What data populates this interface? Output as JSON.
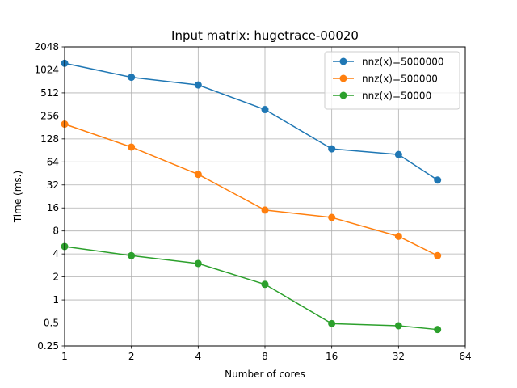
{
  "chart_data": {
    "type": "line",
    "title": "Input matrix: hugetrace-00020",
    "xlabel": "Number of cores",
    "ylabel": "Time (ms.)",
    "x_scale": "log2",
    "y_scale": "log2",
    "xlim": [
      1,
      64
    ],
    "ylim": [
      0.25,
      2048
    ],
    "x_ticks": [
      1,
      2,
      4,
      8,
      16,
      32,
      64
    ],
    "x_tick_labels": [
      "1",
      "2",
      "4",
      "8",
      "16",
      "32",
      "64"
    ],
    "y_ticks": [
      0.25,
      0.5,
      1,
      2,
      4,
      8,
      16,
      32,
      64,
      128,
      256,
      512,
      1024,
      2048
    ],
    "y_tick_labels": [
      "0.25",
      "0.5",
      "1",
      "2",
      "4",
      "8",
      "16",
      "32",
      "64",
      "128",
      "256",
      "512",
      "1024",
      "2048"
    ],
    "grid": true,
    "legend_position": "top-right",
    "x": [
      1,
      2,
      4,
      8,
      16,
      32,
      48
    ],
    "series": [
      {
        "name": "nnz(x)=5000000",
        "color": "#1f77b4",
        "values": [
          1250,
          820,
          650,
          310,
          95,
          80,
          37
        ]
      },
      {
        "name": "nnz(x)=500000",
        "color": "#ff7f0e",
        "values": [
          200,
          100,
          44,
          15,
          12,
          6.8,
          3.8
        ]
      },
      {
        "name": "nnz(x)=50000",
        "color": "#2ca02c",
        "values": [
          5.0,
          3.8,
          3.0,
          1.6,
          0.49,
          0.46,
          0.41
        ]
      }
    ]
  }
}
